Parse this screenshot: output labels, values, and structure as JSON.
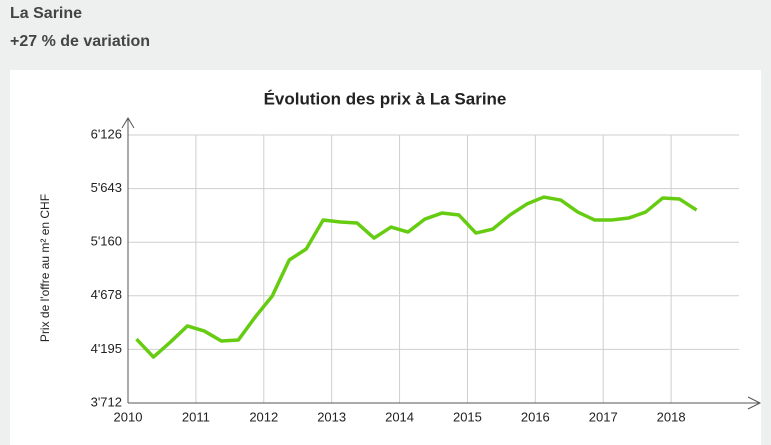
{
  "header": {
    "title": "La Sarine",
    "subtitle": "+27 % de variation"
  },
  "chart_data": {
    "type": "line",
    "title": "Évolution des prix à La Sarine",
    "y_label": "Prix de l'offre au m² en CHF",
    "x": [
      2010.125,
      2010.375,
      2010.625,
      2010.875,
      2011.125,
      2011.375,
      2011.625,
      2011.875,
      2012.125,
      2012.375,
      2012.625,
      2012.875,
      2013.125,
      2013.375,
      2013.625,
      2013.875,
      2014.125,
      2014.375,
      2014.625,
      2014.875,
      2015.125,
      2015.375,
      2015.625,
      2015.875,
      2016.125,
      2016.375,
      2016.625,
      2016.875,
      2017.125,
      2017.375,
      2017.625,
      2017.875,
      2018.125,
      2018.375
    ],
    "series": [
      {
        "color": "#66cc11",
        "values": [
          4288,
          4126,
          4261,
          4406,
          4360,
          4270,
          4279,
          4487,
          4676,
          5000,
          5099,
          5360,
          5342,
          5333,
          5198,
          5297,
          5252,
          5369,
          5423,
          5405,
          5243,
          5279,
          5405,
          5504,
          5567,
          5540,
          5432,
          5360,
          5360,
          5378,
          5432,
          5558,
          5549,
          5450
        ]
      }
    ],
    "xlim": [
      2010,
      2019
    ],
    "xticks": [
      2010,
      2011,
      2012,
      2013,
      2014,
      2015,
      2016,
      2017,
      2018
    ],
    "ylim": [
      3712,
      6126
    ],
    "yticks": [
      {
        "value": 3712,
        "label": "3'712"
      },
      {
        "value": 4195,
        "label": "4'195"
      },
      {
        "value": 4678,
        "label": "4'678"
      },
      {
        "value": 5160,
        "label": "5'160"
      },
      {
        "value": 5643,
        "label": "5'643"
      },
      {
        "value": 6126,
        "label": "6'126"
      }
    ],
    "grid": true
  }
}
